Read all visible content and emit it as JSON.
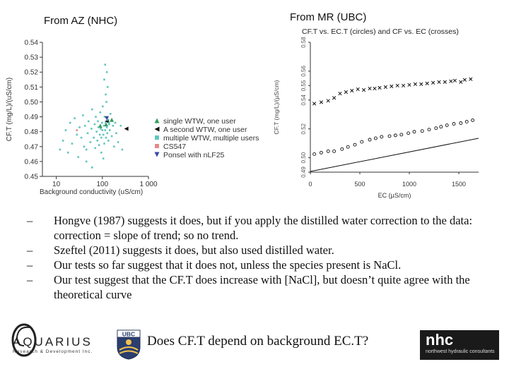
{
  "headers": {
    "left": "From AZ (NHC)",
    "right": "From MR (UBC)"
  },
  "chart_data": [
    {
      "type": "scatter",
      "xscale": "log",
      "xlabel": "Background conductivity (uS/cm)",
      "ylabel": "CF.T (mg/L)/(uS/cm)",
      "xlim": [
        5,
        1000
      ],
      "ylim": [
        0.45,
        0.54
      ],
      "x_ticks": [
        10,
        100,
        1000
      ],
      "x_tick_labels": [
        "10",
        "100",
        "1 000"
      ],
      "y_ticks": [
        0.45,
        0.46,
        0.47,
        0.48,
        0.49,
        0.5,
        0.51,
        0.52,
        0.53,
        0.54
      ],
      "y_tick_labels": [
        "0.45",
        "0.46",
        "0.47",
        "0.48",
        "0.49",
        "0.50",
        "0.51",
        "0.52",
        "0.53",
        "0.54"
      ],
      "legend_position": "right",
      "series": [
        {
          "name": "single WTW, one user",
          "marker": "triangle-up",
          "color": "#3a9a58",
          "points": [
            [
              120,
              0.485
            ],
            [
              160,
              0.488
            ],
            [
              90,
              0.484
            ]
          ]
        },
        {
          "name": "A second WTW, one user",
          "marker": "triangle-left",
          "color": "#111111",
          "points": [
            [
              330,
              0.482
            ],
            [
              125,
              0.487
            ]
          ]
        },
        {
          "name": "multiple WTW, multiple users",
          "marker": "square",
          "color": "#63c4c0",
          "points": [
            [
              12,
              0.468
            ],
            [
              14,
              0.474
            ],
            [
              16,
              0.481
            ],
            [
              18,
              0.466
            ],
            [
              20,
              0.486
            ],
            [
              22,
              0.472
            ],
            [
              25,
              0.489
            ],
            [
              28,
              0.478
            ],
            [
              30,
              0.463
            ],
            [
              32,
              0.483
            ],
            [
              35,
              0.476
            ],
            [
              38,
              0.491
            ],
            [
              40,
              0.47
            ],
            [
              42,
              0.484
            ],
            [
              45,
              0.468
            ],
            [
              48,
              0.479
            ],
            [
              50,
              0.487
            ],
            [
              55,
              0.473
            ],
            [
              58,
              0.482
            ],
            [
              60,
              0.495
            ],
            [
              65,
              0.476
            ],
            [
              68,
              0.485
            ],
            [
              70,
              0.469
            ],
            [
              72,
              0.49
            ],
            [
              75,
              0.48
            ],
            [
              78,
              0.474
            ],
            [
              80,
              0.487
            ],
            [
              82,
              0.483
            ],
            [
              85,
              0.471
            ],
            [
              88,
              0.478
            ],
            [
              90,
              0.493
            ],
            [
              92,
              0.482
            ],
            [
              95,
              0.476
            ],
            [
              98,
              0.486
            ],
            [
              100,
              0.481
            ],
            [
              102,
              0.497
            ],
            [
              105,
              0.478
            ],
            [
              108,
              0.484
            ],
            [
              110,
              0.472
            ],
            [
              112,
              0.49
            ],
            [
              115,
              0.481
            ],
            [
              118,
              0.486
            ],
            [
              120,
              0.476
            ],
            [
              122,
              0.5
            ],
            [
              125,
              0.483
            ],
            [
              128,
              0.479
            ],
            [
              130,
              0.488
            ],
            [
              135,
              0.474
            ],
            [
              140,
              0.485
            ],
            [
              145,
              0.481
            ],
            [
              150,
              0.492
            ],
            [
              160,
              0.477
            ],
            [
              170,
              0.484
            ],
            [
              180,
              0.47
            ],
            [
              190,
              0.486
            ],
            [
              200,
              0.479
            ],
            [
              220,
              0.473
            ],
            [
              250,
              0.484
            ],
            [
              270,
              0.468
            ],
            [
              110,
              0.515
            ],
            [
              115,
              0.525
            ],
            [
              118,
              0.505
            ],
            [
              125,
              0.52
            ],
            [
              130,
              0.51
            ],
            [
              140,
              0.486
            ],
            [
              105,
              0.462
            ],
            [
              95,
              0.466
            ],
            [
              60,
              0.456
            ],
            [
              45,
              0.46
            ]
          ]
        },
        {
          "name": "CS547",
          "marker": "square",
          "color": "#e58a8a",
          "points": [
            [
              28,
              0.481
            ]
          ]
        },
        {
          "name": "Ponsel with nLF25",
          "marker": "triangle-down",
          "color": "#3a4aa0",
          "points": [
            [
              125,
              0.489
            ]
          ]
        }
      ]
    },
    {
      "type": "scatter",
      "title": "CF.T vs. EC.T (circles) and CF vs. EC (crosses)",
      "xlabel": "EC (µS/cm)",
      "ylabel": "CF.T (mg/L)/(µS/cm)",
      "xlim": [
        0,
        1700
      ],
      "ylim": [
        0.49,
        0.58
      ],
      "x_ticks": [
        0,
        500,
        1000,
        1500
      ],
      "x_tick_labels": [
        "0",
        "500",
        "1000",
        "1500"
      ],
      "y_ticks": [
        0.49,
        0.5,
        0.52,
        0.54,
        0.55,
        0.56,
        0.58
      ],
      "y_tick_labels": [
        "0.49",
        "0.50",
        "0.52",
        "0.54",
        "0.55",
        "0.56",
        "0.58"
      ],
      "series": [
        {
          "name": "circles",
          "marker": "circle",
          "points": [
            [
              40,
              0.5025
            ],
            [
              110,
              0.5035
            ],
            [
              180,
              0.5045
            ],
            [
              240,
              0.5045
            ],
            [
              320,
              0.506
            ],
            [
              380,
              0.5075
            ],
            [
              450,
              0.509
            ],
            [
              520,
              0.511
            ],
            [
              600,
              0.5125
            ],
            [
              660,
              0.5135
            ],
            [
              720,
              0.5145
            ],
            [
              800,
              0.515
            ],
            [
              860,
              0.5155
            ],
            [
              920,
              0.516
            ],
            [
              990,
              0.517
            ],
            [
              1050,
              0.518
            ],
            [
              1130,
              0.5185
            ],
            [
              1200,
              0.5195
            ],
            [
              1270,
              0.5205
            ],
            [
              1320,
              0.5215
            ],
            [
              1380,
              0.5225
            ],
            [
              1450,
              0.5235
            ],
            [
              1520,
              0.524
            ],
            [
              1580,
              0.525
            ],
            [
              1640,
              0.526
            ]
          ]
        },
        {
          "name": "crosses",
          "marker": "cross",
          "points": [
            [
              40,
              0.5375
            ],
            [
              110,
              0.5385
            ],
            [
              180,
              0.5395
            ],
            [
              240,
              0.5415
            ],
            [
              300,
              0.5445
            ],
            [
              360,
              0.5455
            ],
            [
              420,
              0.5465
            ],
            [
              480,
              0.5475
            ],
            [
              540,
              0.547
            ],
            [
              600,
              0.548
            ],
            [
              650,
              0.548
            ],
            [
              700,
              0.5485
            ],
            [
              760,
              0.549
            ],
            [
              820,
              0.5495
            ],
            [
              880,
              0.55
            ],
            [
              940,
              0.55
            ],
            [
              1000,
              0.5505
            ],
            [
              1060,
              0.551
            ],
            [
              1120,
              0.551
            ],
            [
              1180,
              0.5515
            ],
            [
              1240,
              0.552
            ],
            [
              1300,
              0.5525
            ],
            [
              1360,
              0.5525
            ],
            [
              1420,
              0.553
            ],
            [
              1460,
              0.5535
            ],
            [
              1520,
              0.5525
            ],
            [
              1560,
              0.554
            ],
            [
              1620,
              0.5545
            ]
          ]
        },
        {
          "name": "lower trend",
          "marker": "line",
          "points": [
            [
              0,
              0.4905
            ],
            [
              1700,
              0.5135
            ]
          ]
        }
      ]
    }
  ],
  "bullets": [
    "Hongve (1987) suggests it does, but if you apply the distilled water correction to the data: correction = slope of trend; so no trend.",
    "Szeftel (2011) suggests it does, but also used distilled water.",
    "Our tests so far suggest that it does not, unless the species present is NaCl.",
    "Our test suggest that the CF.T does increase with [NaCl], but doesn’t quite agree with the theoretical curve"
  ],
  "bullet_marker": "–",
  "footer": {
    "title": "Does CF.T depend on background EC.T?",
    "logo_aquarius": {
      "word": "AQUARIUS",
      "sub": "Research & Development Inc."
    },
    "logo_ubc": "UBC",
    "logo_nhc": {
      "word": "nhc",
      "sub": "northwest hydraulic consultants"
    }
  },
  "colors": {
    "text": "#111111",
    "axis": "#333333"
  }
}
